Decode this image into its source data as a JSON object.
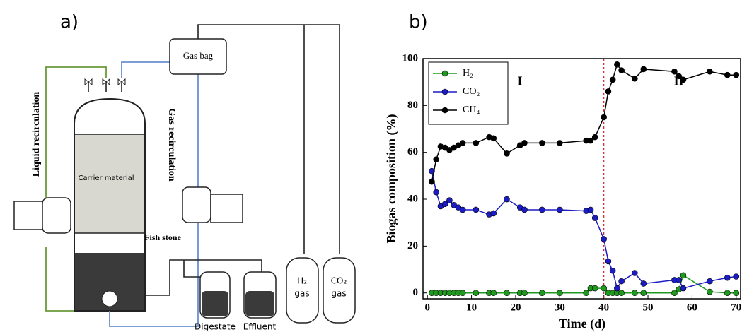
{
  "panels": {
    "a": "a)",
    "b": "b)"
  },
  "diagram": {
    "gas_bag": "Gas bag",
    "liquid_recirculation": "Liquid recirculation",
    "gas_recirculation": "Gas recirculation",
    "carrier": "Carrier material",
    "fish_stone": "Fish stone",
    "h2_formula": "H₂",
    "h2_gas": "gas",
    "co2_formula": "CO₂",
    "co2_gas": "gas",
    "digestate": "Digestate",
    "effluent": "Effluent"
  },
  "chart_data": {
    "type": "line",
    "xlabel": "Time (d)",
    "ylabel": "Biogas composition (%)",
    "x": [
      1,
      2,
      3,
      4,
      5,
      6,
      7,
      8,
      11,
      14,
      15,
      18,
      21,
      22,
      26,
      30,
      36,
      37,
      38,
      40,
      41,
      42,
      43,
      44,
      47,
      49,
      56,
      57,
      58,
      64,
      68,
      70
    ],
    "series": [
      {
        "name": "H₂",
        "color": "#1f9a1f",
        "values": [
          0,
          0,
          0,
          0,
          0,
          0,
          0,
          0,
          0,
          0,
          0,
          0,
          0,
          0,
          0,
          0,
          0,
          2,
          2,
          2,
          0,
          0,
          0,
          0,
          0,
          0,
          0,
          1.5,
          7.5,
          0.5,
          0,
          0
        ]
      },
      {
        "name": "CO₂",
        "color": "#1c1cc4",
        "values": [
          52,
          43,
          37,
          38,
          39.5,
          37.5,
          36.5,
          35.5,
          35.5,
          33.5,
          34,
          40,
          36.5,
          35.5,
          35.5,
          35.5,
          35,
          35.5,
          32,
          23,
          13.5,
          9.5,
          2,
          5,
          8.5,
          4,
          5.5,
          5.5,
          2,
          5,
          6.5,
          7
        ]
      },
      {
        "name": "CH₄",
        "color": "#000000",
        "values": [
          47.5,
          57,
          62.5,
          62,
          61,
          62,
          63,
          64,
          64,
          66.5,
          66,
          59.5,
          63,
          64,
          64,
          64,
          65,
          65,
          66.5,
          75,
          86,
          91,
          97.5,
          95,
          91.5,
          95.5,
          94.5,
          92.5,
          91,
          94.5,
          93,
          93
        ]
      }
    ],
    "xlim": [
      -1,
      71
    ],
    "ylim": [
      -2.5,
      100
    ],
    "xticks": [
      0,
      10,
      20,
      30,
      40,
      50,
      60,
      70
    ],
    "yticks": [
      0,
      20,
      40,
      60,
      80,
      100
    ],
    "phase_line": 40,
    "phase_line_color": "#d02020",
    "annotations": [
      {
        "text": "I",
        "x": 21,
        "y": 90
      },
      {
        "text": "II",
        "x": 57,
        "y": 90
      }
    ],
    "legend": "upper left"
  }
}
